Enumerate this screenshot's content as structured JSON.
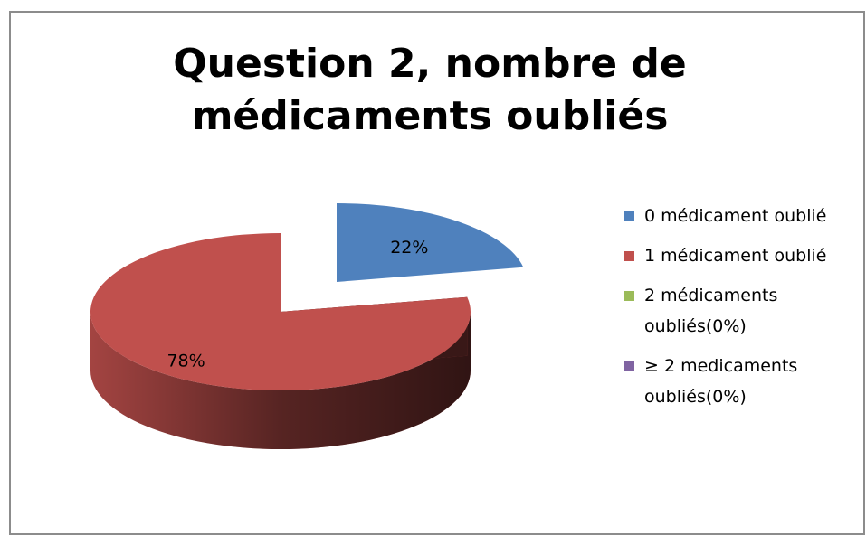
{
  "chart_data": {
    "type": "pie3d",
    "title": "Question 2, nombre de médicaments oubliés",
    "categories": [
      "0 médicament oublié",
      "1 médicament oublié",
      "2 médicaments oubliés(0%)",
      "≥ 2 medicaments oubliés(0%)"
    ],
    "values": [
      22,
      78,
      0,
      0
    ],
    "value_labels": [
      "22%",
      "78%",
      null,
      null
    ],
    "colors": [
      "#4f81bd",
      "#c0504d",
      "#9bbb59",
      "#8064a2"
    ],
    "legend": "right"
  }
}
